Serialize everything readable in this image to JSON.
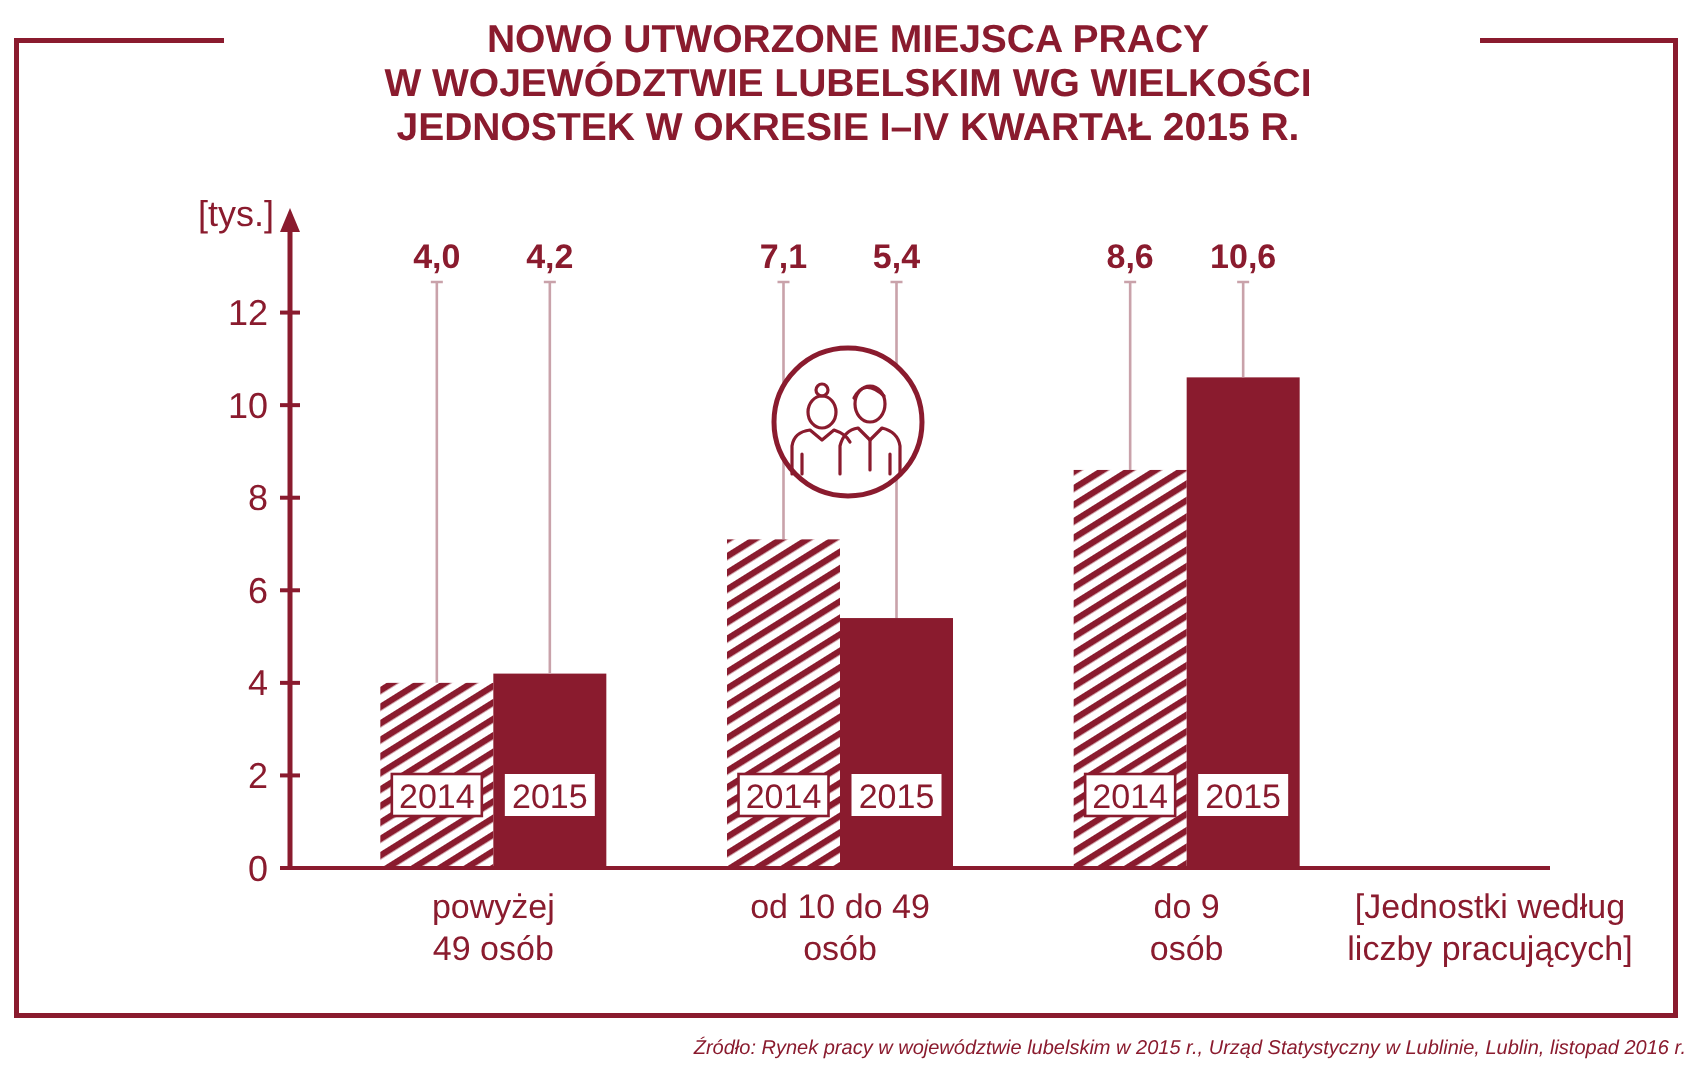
{
  "chart_data": {
    "type": "bar",
    "title": "NOWO UTWORZONE MIEJSCA PRACY\nW WOJEWÓDZTWIE LUBELSKIM WG WIELKOŚCI\nJEDNOSTEK W OKRESIE I–IV KWARTAŁ 2015 R.",
    "ylabel": "[tys.]",
    "xlabel": "[Jednostki według\nliczby pracujących]",
    "categories": [
      "powyżej\n49 osób",
      "od 10 do 49\nosób",
      "do 9\nosób"
    ],
    "series": [
      {
        "name": "2014",
        "color": "#8a1b2e",
        "values": [
          4.0,
          7.1,
          8.6
        ],
        "value_labels": [
          "4,0",
          "7,1",
          "8,6"
        ]
      },
      {
        "name": "2015",
        "color": "#8a1b2e",
        "values": [
          4.2,
          5.4,
          10.6
        ],
        "value_labels": [
          "4,2",
          "5,4",
          "10,6"
        ]
      }
    ],
    "ylim": [
      0,
      14
    ],
    "yticks": [
      0,
      2,
      4,
      6,
      8,
      10,
      12
    ],
    "annotations": [
      "Źródło: Rynek pracy w województwie lubelskim w 2015 r., Urząd Statystyczny w Lublinie, Lublin, listopad 2016 r."
    ]
  }
}
